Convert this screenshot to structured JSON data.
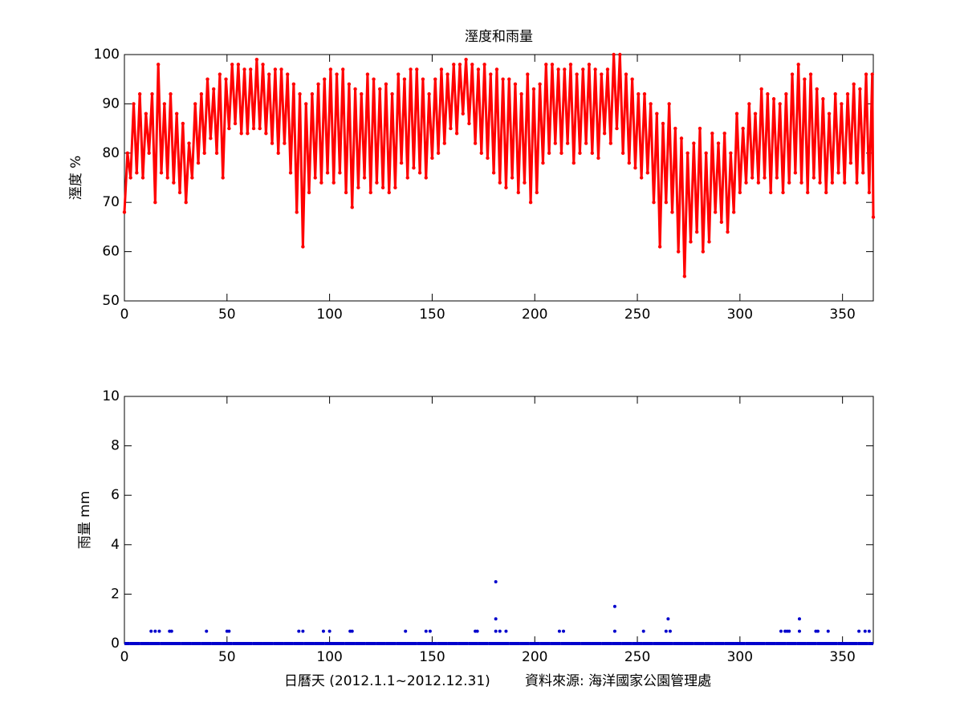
{
  "chart_data": [
    {
      "type": "line",
      "title": "溼度和雨量",
      "ylabel": "溼度 %",
      "color": "#ff0000",
      "xlim": [
        0,
        365
      ],
      "xticks": [
        0,
        50,
        100,
        150,
        200,
        250,
        300,
        350
      ],
      "ylim": [
        50,
        100
      ],
      "yticks": [
        50,
        60,
        70,
        80,
        90,
        100
      ],
      "grid": false,
      "x": [
        0,
        1.5,
        3,
        4.5,
        6,
        7.5,
        9,
        10.5,
        12,
        13.5,
        15,
        16.5,
        18,
        19.5,
        21,
        22.5,
        24,
        25.5,
        27,
        28.5,
        30,
        31.5,
        33,
        34.5,
        36,
        37.5,
        39,
        40.5,
        42,
        43.5,
        45,
        46.5,
        48,
        49.5,
        51,
        52.5,
        54,
        55.5,
        57,
        58.5,
        60,
        61.5,
        63,
        64.5,
        66,
        67.5,
        69,
        70.5,
        72,
        73.5,
        75,
        76.5,
        78,
        79.5,
        81,
        82.5,
        84,
        85.5,
        87,
        88.5,
        90,
        91.5,
        93,
        94.5,
        96,
        97.5,
        99,
        100.5,
        102,
        103.5,
        105,
        106.5,
        108,
        109.5,
        111,
        112.5,
        114,
        115.5,
        117,
        118.5,
        120,
        121.5,
        123,
        124.5,
        126,
        127.5,
        129,
        130.5,
        132,
        133.5,
        135,
        136.5,
        138,
        139.5,
        141,
        142.5,
        144,
        145.5,
        147,
        148.5,
        150,
        151.5,
        153,
        154.5,
        156,
        157.5,
        159,
        160.5,
        162,
        163.5,
        165,
        166.5,
        168,
        169.5,
        171,
        172.5,
        174,
        175.5,
        177,
        178.5,
        180,
        181.5,
        183,
        184.5,
        186,
        187.5,
        189,
        190.5,
        192,
        193.5,
        195,
        196.5,
        198,
        199.5,
        201,
        202.5,
        204,
        205.5,
        207,
        208.5,
        210,
        211.5,
        213,
        214.5,
        216,
        217.5,
        219,
        220.5,
        222,
        223.5,
        225,
        226.5,
        228,
        229.5,
        231,
        232.5,
        234,
        235.5,
        237,
        238.5,
        240,
        241.5,
        243,
        244.5,
        246,
        247.5,
        249,
        250.5,
        252,
        253.5,
        255,
        256.5,
        258,
        259.5,
        261,
        262.5,
        264,
        265.5,
        267,
        268.5,
        270,
        271.5,
        273,
        274.5,
        276,
        277.5,
        279,
        280.5,
        282,
        283.5,
        285,
        286.5,
        288,
        289.5,
        291,
        292.5,
        294,
        295.5,
        297,
        298.5,
        300,
        301.5,
        303,
        304.5,
        306,
        307.5,
        309,
        310.5,
        312,
        313.5,
        315,
        316.5,
        318,
        319.5,
        321,
        322.5,
        324,
        325.5,
        327,
        328.5,
        330,
        331.5,
        333,
        334.5,
        336,
        337.5,
        339,
        340.5,
        342,
        343.5,
        345,
        346.5,
        348,
        349.5,
        351,
        352.5,
        354,
        355.5,
        357,
        358.5,
        360,
        361.5,
        363,
        364.5,
        365
      ],
      "values": [
        68,
        80,
        75,
        90,
        76,
        92,
        75,
        88,
        80,
        92,
        70,
        98,
        76,
        90,
        75,
        92,
        74,
        88,
        72,
        86,
        70,
        82,
        75,
        90,
        78,
        92,
        80,
        95,
        83,
        93,
        80,
        96,
        75,
        95,
        85,
        98,
        86,
        98,
        84,
        97,
        84,
        97,
        85,
        99,
        85,
        98,
        84,
        96,
        82,
        97,
        80,
        97,
        82,
        96,
        76,
        94,
        68,
        92,
        61,
        90,
        72,
        92,
        75,
        94,
        74,
        95,
        76,
        97,
        74,
        96,
        76,
        97,
        72,
        94,
        69,
        93,
        73,
        92,
        75,
        96,
        72,
        95,
        74,
        93,
        73,
        94,
        72,
        92,
        73,
        96,
        78,
        95,
        75,
        97,
        77,
        97,
        76,
        95,
        75,
        92,
        79,
        95,
        80,
        97,
        82,
        96,
        85,
        98,
        84,
        98,
        88,
        99,
        86,
        98,
        82,
        97,
        80,
        98,
        79,
        96,
        76,
        97,
        74,
        95,
        73,
        95,
        75,
        94,
        72,
        92,
        74,
        96,
        70,
        93,
        72,
        94,
        78,
        98,
        80,
        98,
        82,
        97,
        80,
        97,
        82,
        98,
        78,
        96,
        80,
        97,
        82,
        98,
        80,
        97,
        79,
        96,
        84,
        97,
        82,
        100,
        85,
        100,
        80,
        96,
        78,
        95,
        77,
        92,
        75,
        92,
        76,
        90,
        70,
        88,
        61,
        86,
        70,
        90,
        68,
        85,
        60,
        83,
        55,
        80,
        62,
        82,
        64,
        85,
        60,
        80,
        62,
        84,
        68,
        82,
        66,
        84,
        64,
        80,
        68,
        88,
        72,
        85,
        74,
        90,
        75,
        88,
        74,
        93,
        75,
        92,
        72,
        91,
        75,
        90,
        72,
        92,
        74,
        96,
        76,
        98,
        74,
        95,
        72,
        96,
        75,
        93,
        74,
        91,
        72,
        88,
        74,
        92,
        76,
        90,
        74,
        92,
        78,
        94,
        74,
        93,
        76,
        96,
        72,
        96,
        67
      ]
    },
    {
      "type": "scatter",
      "ylabel": "雨量 mm",
      "xlabel": "日曆天 (2012.1.1~2012.12.31)        資料來源: 海洋國家公園管理處",
      "color": "#0000cc",
      "xlim": [
        0,
        365
      ],
      "xticks": [
        0,
        50,
        100,
        150,
        200,
        250,
        300,
        350
      ],
      "ylim": [
        0,
        10
      ],
      "yticks": [
        0,
        2,
        4,
        6,
        8,
        10
      ],
      "grid": false,
      "x": [
        0,
        5,
        10,
        15,
        20,
        25,
        30,
        35,
        40,
        45,
        50,
        55,
        60,
        65,
        70,
        75,
        80,
        85,
        90,
        95,
        100,
        105,
        110,
        115,
        120,
        125,
        130,
        135,
        140,
        145,
        150,
        155,
        160,
        165,
        170,
        175,
        180,
        185,
        190,
        195,
        200,
        205,
        210,
        215,
        220,
        225,
        230,
        235,
        240,
        245,
        250,
        255,
        260,
        265,
        270,
        275,
        280,
        285,
        290,
        295,
        300,
        305,
        310,
        315,
        320,
        325,
        330,
        335,
        340,
        345,
        350,
        355,
        360,
        365,
        13,
        15,
        17,
        22,
        23,
        40,
        50,
        51,
        85,
        87,
        97,
        100,
        110,
        111,
        137,
        147,
        149,
        171,
        172,
        181,
        181,
        181,
        183,
        186,
        212,
        214,
        239,
        239,
        253,
        264,
        265,
        266,
        320,
        322,
        323,
        324,
        329,
        329,
        337,
        338,
        343,
        358,
        361,
        363
      ],
      "values": [
        0,
        0,
        0,
        0,
        0,
        0,
        0,
        0,
        0,
        0,
        0,
        0,
        0,
        0,
        0,
        0,
        0,
        0,
        0,
        0,
        0,
        0,
        0,
        0,
        0,
        0,
        0,
        0,
        0,
        0,
        0,
        0,
        0,
        0,
        0,
        0,
        0,
        0,
        0,
        0,
        0,
        0,
        0,
        0,
        0,
        0,
        0,
        0,
        0,
        0,
        0,
        0,
        0,
        0,
        0,
        0,
        0,
        0,
        0,
        0,
        0,
        0,
        0,
        0,
        0,
        0,
        0,
        0,
        0,
        0,
        0,
        0,
        0,
        0,
        0.5,
        0.5,
        0.5,
        0.5,
        0.5,
        0.5,
        0.5,
        0.5,
        0.5,
        0.5,
        0.5,
        0.5,
        0.5,
        0.5,
        0.5,
        0.5,
        0.5,
        0.5,
        0.5,
        2.5,
        1,
        0.5,
        0.5,
        0.5,
        0.5,
        0.5,
        1.5,
        0.5,
        0.5,
        0.5,
        1,
        0.5,
        0.5,
        0.5,
        0.5,
        0.5,
        1,
        0.5,
        0.5,
        0.5,
        0.5,
        0.5,
        0.5,
        0.5
      ]
    }
  ]
}
